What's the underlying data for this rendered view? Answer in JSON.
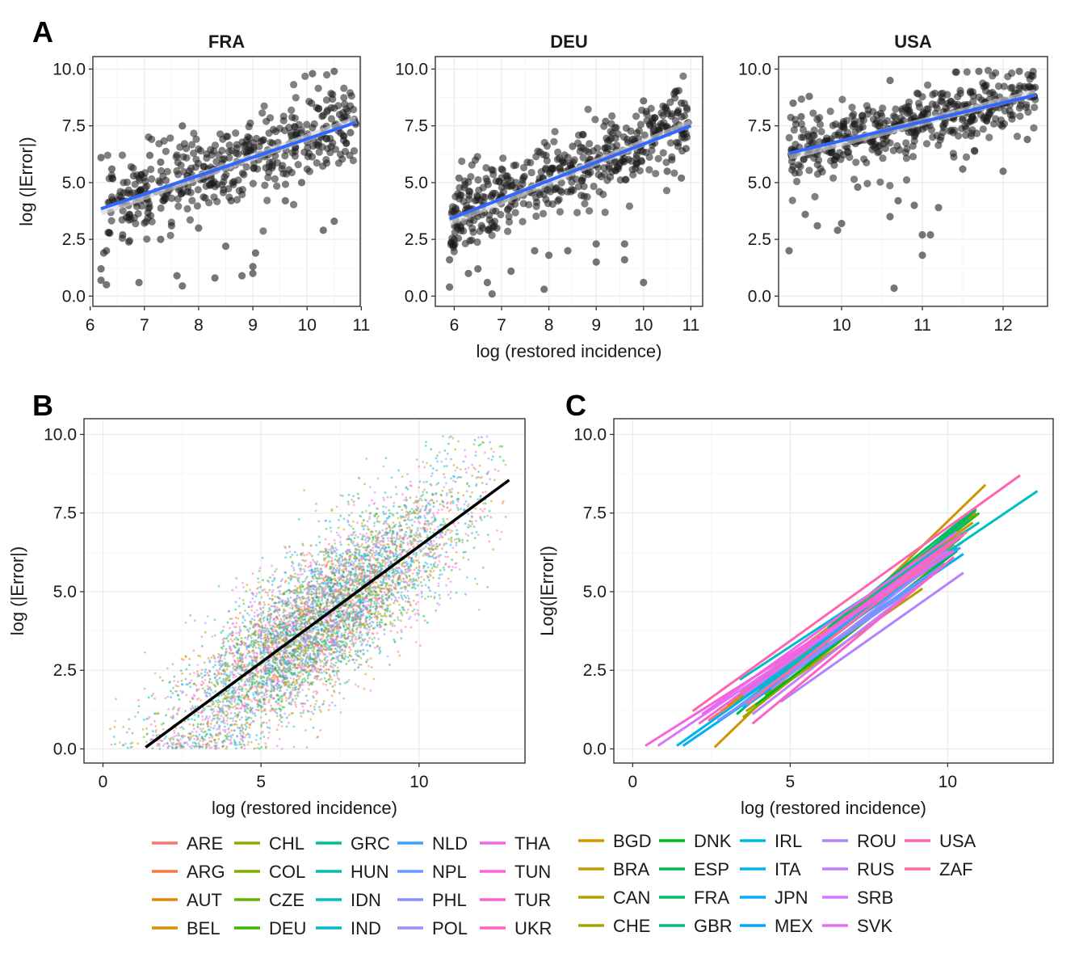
{
  "chart_data": [
    {
      "panel": "A",
      "type": "scatter",
      "title": "FRA",
      "xlabel": "",
      "ylabel": "log (|Error|)",
      "xlim": [
        6.05,
        10.98
      ],
      "ylim": [
        -0.45,
        10.55
      ],
      "xticks": [
        6,
        7,
        8,
        9,
        10,
        11
      ],
      "yticks": [
        0.0,
        2.5,
        5.0,
        7.5,
        10.0
      ],
      "xtick_labels": [
        "6",
        "7",
        "8",
        "9",
        "10",
        "11"
      ],
      "ytick_labels": [
        "0.0",
        "2.5",
        "5.0",
        "7.5",
        "10.0"
      ],
      "point_color": "#1a1a1a",
      "fit_color": "#3366ff",
      "fit_line": {
        "x": [
          6.2,
          10.9
        ],
        "y": [
          3.85,
          7.65
        ]
      },
      "points": [
        [
          6.2,
          0.7
        ],
        [
          6.3,
          0.5
        ],
        [
          6.2,
          1.2
        ],
        [
          6.25,
          1.9
        ],
        [
          6.3,
          2.0
        ],
        [
          6.35,
          2.8
        ],
        [
          6.9,
          0.6
        ],
        [
          7.6,
          0.9
        ],
        [
          7.7,
          0.45
        ],
        [
          8.3,
          0.8
        ],
        [
          8.8,
          0.9
        ],
        [
          9.0,
          1.3
        ],
        [
          9.05,
          1.9
        ],
        [
          9.0,
          1.0
        ],
        [
          8.5,
          2.2
        ],
        [
          6.6,
          2.7
        ],
        [
          7.3,
          2.5
        ],
        [
          7.5,
          3.1
        ],
        [
          8.0,
          3.0
        ],
        [
          6.2,
          6.1
        ],
        [
          6.4,
          5.6
        ],
        [
          6.8,
          5.3
        ],
        [
          7.1,
          6.2
        ],
        [
          7.3,
          5.9
        ],
        [
          7.8,
          4.6
        ],
        [
          8.2,
          4.9
        ],
        [
          7.7,
          7.5
        ],
        [
          8.6,
          4.2
        ],
        [
          10.1,
          9.8
        ],
        [
          10.5,
          9.9
        ],
        [
          10.6,
          8.0
        ],
        [
          10.8,
          7.2
        ],
        [
          10.3,
          2.9
        ],
        [
          10.5,
          3.3
        ],
        [
          9.6,
          4.2
        ],
        [
          9.9,
          5.0
        ]
      ],
      "cloud": {
        "n": 430,
        "x": [
          6.3,
          10.9
        ],
        "slope": 0.79,
        "intercept": -1.0,
        "sd": 0.9,
        "seed": 11
      }
    },
    {
      "panel": "A",
      "type": "scatter",
      "title": "DEU",
      "xlabel": "log (restored incidence)",
      "ylabel": "",
      "xlim": [
        5.6,
        11.25
      ],
      "ylim": [
        -0.45,
        10.55
      ],
      "xticks": [
        6,
        7,
        8,
        9,
        10,
        11
      ],
      "yticks": [
        0.0,
        2.5,
        5.0,
        7.5,
        10.0
      ],
      "xtick_labels": [
        "6",
        "7",
        "8",
        "9",
        "10",
        "11"
      ],
      "ytick_labels": [
        "0.0",
        "2.5",
        "5.0",
        "7.5",
        "10.0"
      ],
      "point_color": "#1a1a1a",
      "fit_color": "#3366ff",
      "fit_line": {
        "x": [
          5.9,
          11.0
        ],
        "y": [
          3.4,
          7.5
        ]
      },
      "points": [
        [
          5.9,
          0.4
        ],
        [
          5.9,
          1.6
        ],
        [
          6.3,
          1.0
        ],
        [
          6.5,
          1.2
        ],
        [
          6.7,
          0.6
        ],
        [
          6.8,
          0.1
        ],
        [
          7.2,
          1.1
        ],
        [
          7.9,
          0.3
        ],
        [
          9.0,
          1.5
        ],
        [
          9.0,
          2.3
        ],
        [
          9.6,
          1.6
        ],
        [
          10.0,
          0.6
        ],
        [
          8.0,
          1.8
        ],
        [
          7.7,
          2.0
        ],
        [
          8.4,
          2.0
        ],
        [
          9.6,
          2.3
        ],
        [
          10.5,
          5.5
        ],
        [
          10.6,
          6.0
        ],
        [
          10.8,
          5.2
        ],
        [
          10.9,
          6.5
        ],
        [
          6.1,
          5.2
        ],
        [
          7.0,
          5.6
        ],
        [
          8.5,
          6.6
        ],
        [
          9.2,
          7.7
        ],
        [
          10.0,
          8.6
        ],
        [
          10.8,
          8.5
        ],
        [
          6.0,
          2.5
        ],
        [
          6.9,
          3.0
        ]
      ],
      "cloud": {
        "n": 470,
        "x": [
          5.9,
          10.95
        ],
        "slope": 0.8,
        "intercept": -1.3,
        "sd": 0.85,
        "seed": 23
      }
    },
    {
      "panel": "A",
      "type": "scatter",
      "title": "USA",
      "xlabel": "",
      "ylabel": "",
      "xlim": [
        9.22,
        12.55
      ],
      "ylim": [
        -0.45,
        10.55
      ],
      "xticks": [
        10,
        11,
        12
      ],
      "yticks": [
        0.0,
        2.5,
        5.0,
        7.5,
        10.0
      ],
      "xtick_labels": [
        "10",
        "11",
        "12"
      ],
      "ytick_labels": [
        "0.0",
        "2.5",
        "5.0",
        "7.5",
        "10.0"
      ],
      "point_color": "#1a1a1a",
      "fit_color": "#3366ff",
      "fit_line": {
        "x": [
          9.35,
          12.4
        ],
        "y": [
          6.3,
          8.85
        ]
      },
      "points": [
        [
          9.35,
          2.0
        ],
        [
          9.55,
          3.6
        ],
        [
          9.7,
          3.1
        ],
        [
          9.95,
          2.9
        ],
        [
          10.0,
          3.2
        ],
        [
          10.65,
          0.35
        ],
        [
          11.0,
          1.8
        ],
        [
          11.0,
          2.7
        ],
        [
          11.1,
          2.7
        ],
        [
          10.6,
          3.5
        ],
        [
          11.2,
          3.9
        ],
        [
          10.9,
          4.0
        ],
        [
          10.7,
          4.2
        ],
        [
          9.4,
          8.5
        ],
        [
          9.6,
          8.8
        ],
        [
          9.5,
          7.9
        ],
        [
          10.6,
          9.5
        ],
        [
          11.7,
          9.9
        ],
        [
          12.2,
          9.9
        ],
        [
          12.3,
          6.9
        ],
        [
          12.0,
          5.5
        ],
        [
          9.4,
          5.7
        ],
        [
          10.2,
          4.8
        ],
        [
          11.5,
          5.6
        ]
      ],
      "cloud": {
        "n": 460,
        "x": [
          9.35,
          12.4
        ],
        "slope": 0.84,
        "intercept": -1.55,
        "sd": 0.75,
        "seed": 37
      }
    },
    {
      "panel": "B",
      "type": "scatter",
      "title": "",
      "xlabel": "log (restored incidence)",
      "ylabel": "log (|Error|)",
      "xlim": [
        -0.6,
        13.35
      ],
      "ylim": [
        -0.45,
        10.5
      ],
      "xticks": [
        0,
        5,
        10
      ],
      "yticks": [
        0.0,
        2.5,
        5.0,
        7.5,
        10.0
      ],
      "xtick_labels": [
        "0",
        "5",
        "10"
      ],
      "ytick_labels": [
        "0.0",
        "2.5",
        "5.0",
        "7.5",
        "10.0"
      ],
      "fit_color": "#000000",
      "fit_line": {
        "x": [
          1.35,
          12.85
        ],
        "y": [
          0.05,
          8.55
        ]
      },
      "cloud": {
        "n": 6500,
        "x": [
          0.2,
          12.8
        ],
        "slope": 0.74,
        "intercept": -0.95,
        "sd": 1.15,
        "seed": 5
      },
      "point_palette": [
        "#f8766d",
        "#e58700",
        "#c99800",
        "#a3a500",
        "#6bb100",
        "#00ba38",
        "#00bf7d",
        "#00c0af",
        "#00bcd8",
        "#00b0f6",
        "#619cff",
        "#b983ff",
        "#e76bf3",
        "#fd61d1",
        "#ff67a4"
      ]
    },
    {
      "panel": "C",
      "type": "line",
      "title": "",
      "xlabel": "log (restored incidence)",
      "ylabel": "Log(|Error|)",
      "xlim": [
        -0.6,
        13.35
      ],
      "ylim": [
        -0.45,
        10.5
      ],
      "xticks": [
        0,
        5,
        10
      ],
      "yticks": [
        0.0,
        2.5,
        5.0,
        7.5,
        10.0
      ],
      "xtick_labels": [
        "0",
        "5",
        "10"
      ],
      "ytick_labels": [
        "0.0",
        "2.5",
        "5.0",
        "7.5",
        "10.0"
      ],
      "series": [
        {
          "name": "ARE",
          "color": "#f8766d",
          "x": [
            2.4,
            10.5
          ],
          "y": [
            0.9,
            6.6
          ]
        },
        {
          "name": "ARG",
          "color": "#f17b43",
          "x": [
            2.8,
            10.4
          ],
          "y": [
            1.2,
            6.4
          ]
        },
        {
          "name": "AUT",
          "color": "#e58700",
          "x": [
            3.0,
            10.7
          ],
          "y": [
            1.4,
            7.0
          ]
        },
        {
          "name": "BEL",
          "color": "#db8e00",
          "x": [
            3.4,
            10.8
          ],
          "y": [
            1.8,
            7.2
          ]
        },
        {
          "name": "BGD",
          "color": "#cd9600",
          "x": [
            2.6,
            11.2
          ],
          "y": [
            0.05,
            8.4
          ]
        },
        {
          "name": "BRA",
          "color": "#c09b00",
          "x": [
            3.2,
            10.9
          ],
          "y": [
            1.5,
            7.5
          ]
        },
        {
          "name": "CAN",
          "color": "#b2a000",
          "x": [
            3.6,
            9.2
          ],
          "y": [
            1.2,
            5.1
          ]
        },
        {
          "name": "CHE",
          "color": "#a3a500",
          "x": [
            3.8,
            10.2
          ],
          "y": [
            1.6,
            6.5
          ]
        },
        {
          "name": "CHL",
          "color": "#93a900",
          "x": [
            3.5,
            10.0
          ],
          "y": [
            1.0,
            6.1
          ]
        },
        {
          "name": "COL",
          "color": "#7fae00",
          "x": [
            4.0,
            10.6
          ],
          "y": [
            1.9,
            6.9
          ]
        },
        {
          "name": "CZE",
          "color": "#66b200",
          "x": [
            4.2,
            10.8
          ],
          "y": [
            1.7,
            7.4
          ]
        },
        {
          "name": "DEU",
          "color": "#3cb600",
          "x": [
            5.9,
            11.0
          ],
          "y": [
            3.4,
            7.5
          ]
        },
        {
          "name": "DNK",
          "color": "#00b81f",
          "x": [
            3.9,
            10.3
          ],
          "y": [
            1.4,
            6.3
          ]
        },
        {
          "name": "ESP",
          "color": "#00bb4e",
          "x": [
            3.3,
            10.9
          ],
          "y": [
            1.1,
            7.6
          ]
        },
        {
          "name": "FRA",
          "color": "#00bd6a",
          "x": [
            6.2,
            10.9
          ],
          "y": [
            3.85,
            7.65
          ]
        },
        {
          "name": "GBR",
          "color": "#00bf83",
          "x": [
            3.1,
            10.7
          ],
          "y": [
            1.3,
            7.3
          ]
        },
        {
          "name": "GRC",
          "color": "#00c097",
          "x": [
            2.9,
            10.5
          ],
          "y": [
            1.0,
            6.8
          ]
        },
        {
          "name": "HUN",
          "color": "#00c0aa",
          "x": [
            3.6,
            10.4
          ],
          "y": [
            1.5,
            6.7
          ]
        },
        {
          "name": "IDN",
          "color": "#00bfbc",
          "x": [
            4.6,
            12.85
          ],
          "y": [
            2.6,
            8.2
          ]
        },
        {
          "name": "IND",
          "color": "#00bdcd",
          "x": [
            3.4,
            11.0
          ],
          "y": [
            2.2,
            7.2
          ]
        },
        {
          "name": "IRL",
          "color": "#00badc",
          "x": [
            3.7,
            10.6
          ],
          "y": [
            1.8,
            6.9
          ]
        },
        {
          "name": "ITA",
          "color": "#00b5ea",
          "x": [
            1.4,
            10.3
          ],
          "y": [
            0.1,
            6.4
          ]
        },
        {
          "name": "JPN",
          "color": "#00aff6",
          "x": [
            1.6,
            10.5
          ],
          "y": [
            0.1,
            6.2
          ]
        },
        {
          "name": "MEX",
          "color": "#00a8ff",
          "x": [
            3.5,
            10.1
          ],
          "y": [
            1.3,
            6.0
          ]
        },
        {
          "name": "NLD",
          "color": "#35a2ff",
          "x": [
            3.2,
            10.4
          ],
          "y": [
            1.6,
            6.4
          ]
        },
        {
          "name": "NPL",
          "color": "#6599ff",
          "x": [
            3.0,
            9.9
          ],
          "y": [
            1.1,
            5.9
          ]
        },
        {
          "name": "PHL",
          "color": "#8591ff",
          "x": [
            2.7,
            9.5
          ],
          "y": [
            0.9,
            5.5
          ]
        },
        {
          "name": "POL",
          "color": "#9f8aff",
          "x": [
            4.4,
            10.1
          ],
          "y": [
            1.9,
            6.3
          ]
        },
        {
          "name": "ROU",
          "color": "#b383ff",
          "x": [
            4.7,
            10.5
          ],
          "y": [
            1.5,
            5.6
          ]
        },
        {
          "name": "RUS",
          "color": "#c67cff",
          "x": [
            3.8,
            9.6
          ],
          "y": [
            1.1,
            5.6
          ]
        },
        {
          "name": "SRB",
          "color": "#d874fd",
          "x": [
            0.8,
            10.0
          ],
          "y": [
            0.1,
            6.3
          ]
        },
        {
          "name": "SVK",
          "color": "#e56df4",
          "x": [
            3.5,
            10.2
          ],
          "y": [
            1.7,
            6.6
          ]
        },
        {
          "name": "THA",
          "color": "#f066ea",
          "x": [
            2.2,
            10.3
          ],
          "y": [
            1.1,
            6.9
          ]
        },
        {
          "name": "TUN",
          "color": "#f863dd",
          "x": [
            0.4,
            10.2
          ],
          "y": [
            0.1,
            6.3
          ]
        },
        {
          "name": "TUR",
          "color": "#fd61d0",
          "x": [
            2.1,
            10.4
          ],
          "y": [
            0.8,
            6.8
          ]
        },
        {
          "name": "UKR",
          "color": "#ff61c1",
          "x": [
            3.8,
            10.2
          ],
          "y": [
            0.8,
            6.1
          ]
        },
        {
          "name": "USA",
          "color": "#ff64b0",
          "x": [
            1.9,
            12.3
          ],
          "y": [
            1.2,
            8.7
          ]
        },
        {
          "name": "ZAF",
          "color": "#ff6a9f",
          "x": [
            3.6,
            10.6
          ],
          "y": [
            1.4,
            6.9
          ]
        }
      ]
    }
  ],
  "panel_letters": {
    "a": "A",
    "b": "B",
    "c": "C"
  },
  "legend": {
    "groups": [
      [
        "ARE",
        "ARG",
        "AUT",
        "BEL"
      ],
      [
        "CHL",
        "COL",
        "CZE",
        "DEU"
      ],
      [
        "GRC",
        "HUN",
        "IDN",
        "IND"
      ],
      [
        "NLD",
        "NPL",
        "PHL",
        "POL"
      ],
      [
        "THA",
        "TUN",
        "TUR",
        "UKR"
      ],
      [
        "BGD",
        "BRA",
        "CAN",
        "CHE"
      ],
      [
        "DNK",
        "ESP",
        "FRA",
        "GBR"
      ],
      [
        "IRL",
        "ITA",
        "JPN",
        "MEX"
      ],
      [
        "ROU",
        "RUS",
        "SRB",
        "SVK"
      ],
      [
        "USA",
        "ZAF"
      ]
    ]
  }
}
